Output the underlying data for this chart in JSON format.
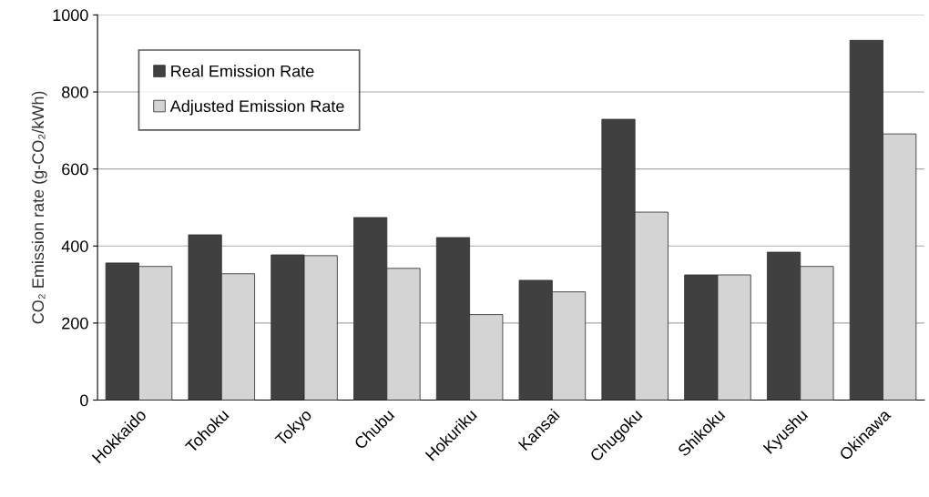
{
  "chart_data": {
    "type": "bar",
    "ylabel": "CO₂ Emission rate (g-CO₂/kWh)",
    "categories": [
      "Hokkaido",
      "Tohoku",
      "Tokyo",
      "Chubu",
      "Hokuriku",
      "Kansai",
      "Chugoku",
      "Shikoku",
      "Kyushu",
      "Okinawa"
    ],
    "series": [
      {
        "name": "Real Emission Rate",
        "color": "#404040",
        "values": [
          356,
          429,
          377,
          474,
          422,
          311,
          729,
          325,
          384,
          934
        ]
      },
      {
        "name": "Adjusted Emission Rate",
        "color": "#d4d4d4",
        "values": [
          347,
          328,
          375,
          342,
          222,
          281,
          488,
          325,
          347,
          691
        ]
      }
    ],
    "ylim": [
      0,
      1000
    ],
    "yticks": [
      0,
      200,
      400,
      600,
      800,
      1000
    ],
    "grid": "y",
    "legend": "top left"
  }
}
